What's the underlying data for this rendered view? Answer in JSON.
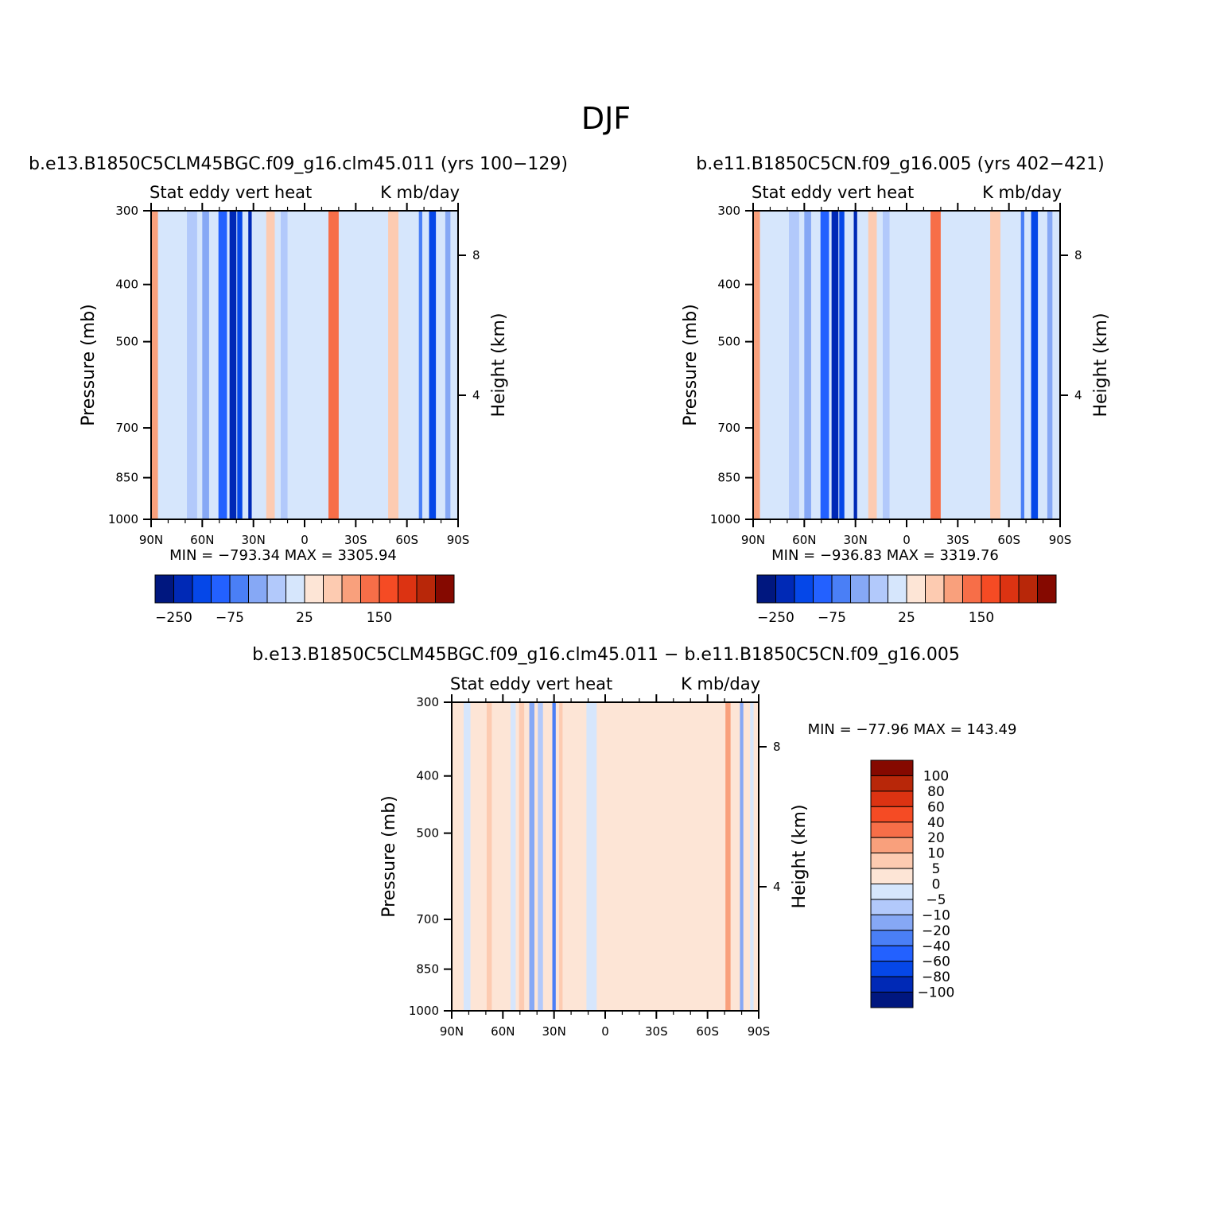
{
  "figure": {
    "title": "DJF",
    "diff_title": "b.e13.B1850C5CLM45BGC.f09_g16.clm45.011 − b.e11.B1850C5CN.f09_g16.005"
  },
  "chart_data": [
    {
      "type": "heatmap",
      "title": "b.e13.B1850C5CLM45BGC.f09_g16.clm45.011 (yrs 100−129)",
      "left_string": "Stat eddy vert heat",
      "right_string": "K mb/day",
      "ylabel": "Pressure (mb)",
      "ylabel_right": "Height (km)",
      "x_ticks": [
        "90N",
        "60N",
        "30N",
        "0",
        "30S",
        "60S",
        "90S"
      ],
      "y_ticks": [
        300,
        400,
        500,
        700,
        850,
        1000
      ],
      "y_right_ticks": [
        8,
        4
      ],
      "min_max": "MIN = −793.34   MAX = 3305.94",
      "colorbar_labels": [
        "−250",
        "−75",
        "25",
        "150"
      ],
      "fields": [
        {
          "lat": 88,
          "w": 4,
          "v": 25
        },
        {
          "lat": 83,
          "w": 5,
          "v": -10
        },
        {
          "lat": 66,
          "w": 6,
          "v": -25
        },
        {
          "lat": 58,
          "w": 4,
          "v": -45
        },
        {
          "lat": 48,
          "w": 5,
          "v": -90
        },
        {
          "lat": 42,
          "w": 4,
          "v": -160
        },
        {
          "lat": 38,
          "w": 3,
          "v": -120
        },
        {
          "lat": 32,
          "w": 2,
          "v": -250
        },
        {
          "lat": 20,
          "w": 5,
          "v": 15
        },
        {
          "lat": 12,
          "w": 4,
          "v": -20
        },
        {
          "lat": -5,
          "w": 4,
          "v": -10
        },
        {
          "lat": -17,
          "w": 6,
          "v": 50
        },
        {
          "lat": -45,
          "w": 6,
          "v": -10
        },
        {
          "lat": -52,
          "w": 6,
          "v": 20
        },
        {
          "lat": -68,
          "w": 2,
          "v": -75
        },
        {
          "lat": -75,
          "w": 4,
          "v": -120
        },
        {
          "lat": -84,
          "w": 3,
          "v": -30
        }
      ]
    },
    {
      "type": "heatmap",
      "title": "b.e11.B1850C5CN.f09_g16.005 (yrs 402−421)",
      "left_string": "Stat eddy vert heat",
      "right_string": "K mb/day",
      "ylabel": "Pressure (mb)",
      "ylabel_right": "Height (km)",
      "x_ticks": [
        "90N",
        "60N",
        "30N",
        "0",
        "30S",
        "60S",
        "90S"
      ],
      "y_ticks": [
        300,
        400,
        500,
        700,
        850,
        1000
      ],
      "y_right_ticks": [
        8,
        4
      ],
      "min_max": "MIN = −936.83   MAX = 3319.76",
      "colorbar_labels": [
        "−250",
        "−75",
        "25",
        "150"
      ],
      "fields": [
        {
          "lat": 88,
          "w": 4,
          "v": 25
        },
        {
          "lat": 83,
          "w": 5,
          "v": -10
        },
        {
          "lat": 66,
          "w": 6,
          "v": -25
        },
        {
          "lat": 58,
          "w": 4,
          "v": -45
        },
        {
          "lat": 48,
          "w": 5,
          "v": -90
        },
        {
          "lat": 42,
          "w": 4,
          "v": -160
        },
        {
          "lat": 38,
          "w": 3,
          "v": -120
        },
        {
          "lat": 30,
          "w": 2,
          "v": -250
        },
        {
          "lat": 20,
          "w": 5,
          "v": 15
        },
        {
          "lat": 12,
          "w": 4,
          "v": -20
        },
        {
          "lat": -5,
          "w": 4,
          "v": -10
        },
        {
          "lat": -17,
          "w": 6,
          "v": 50
        },
        {
          "lat": -45,
          "w": 6,
          "v": -10
        },
        {
          "lat": -52,
          "w": 6,
          "v": 20
        },
        {
          "lat": -68,
          "w": 2,
          "v": -75
        },
        {
          "lat": -75,
          "w": 4,
          "v": -120
        },
        {
          "lat": -84,
          "w": 3,
          "v": -30
        }
      ]
    },
    {
      "type": "heatmap",
      "title": "",
      "left_string": "Stat eddy vert heat",
      "right_string": "K mb/day",
      "ylabel": "Pressure (mb)",
      "ylabel_right": "Height (km)",
      "x_ticks": [
        "90N",
        "60N",
        "30N",
        "0",
        "30S",
        "60S",
        "90S"
      ],
      "y_ticks": [
        300,
        400,
        500,
        700,
        850,
        1000
      ],
      "y_right_ticks": [
        8,
        4
      ],
      "min_max": "MIN = −77.96   MAX = 143.49",
      "colorbar_labels": [
        "100",
        "80",
        "60",
        "40",
        "20",
        "10",
        "5",
        "0",
        "−5",
        "−10",
        "−20",
        "−40",
        "−60",
        "−80",
        "−100"
      ],
      "fields": [
        {
          "lat": 81,
          "w": 4,
          "v": -3
        },
        {
          "lat": 68,
          "w": 3,
          "v": 8
        },
        {
          "lat": 54,
          "w": 3,
          "v": -4
        },
        {
          "lat": 49,
          "w": 3,
          "v": 7
        },
        {
          "lat": 43,
          "w": 3,
          "v": -12
        },
        {
          "lat": 38,
          "w": 3,
          "v": -8
        },
        {
          "lat": 30,
          "w": 2,
          "v": -35
        },
        {
          "lat": 26,
          "w": 2,
          "v": 6
        },
        {
          "lat": 8,
          "w": 6,
          "v": -3
        },
        {
          "lat": -15,
          "w": 6,
          "v": 3
        },
        {
          "lat": -42,
          "w": 6,
          "v": 3
        },
        {
          "lat": -72,
          "w": 3,
          "v": 12
        },
        {
          "lat": -80,
          "w": 2,
          "v": -15
        },
        {
          "lat": -86,
          "w": 2,
          "v": -3
        }
      ]
    }
  ],
  "colors": {
    "panel_scale": [
      "#00177f",
      "#0029b6",
      "#0547e8",
      "#2361ff",
      "#4a7ff6",
      "#86a8f5",
      "#b2c9fb",
      "#d6e6fc",
      "#fde5d6",
      "#fdcbb1",
      "#f9a07c",
      "#f76e48",
      "#f54b24",
      "#dc3312",
      "#b82709",
      "#850900"
    ],
    "diff_scale": [
      "#00177f",
      "#0029b6",
      "#0547e8",
      "#2361ff",
      "#4a7ff6",
      "#86a8f5",
      "#b2c9fb",
      "#d6e6fc",
      "#fde5d6",
      "#fdcbb1",
      "#f9a07c",
      "#f76e48",
      "#f54b24",
      "#dc3312",
      "#b82709",
      "#850900"
    ]
  }
}
